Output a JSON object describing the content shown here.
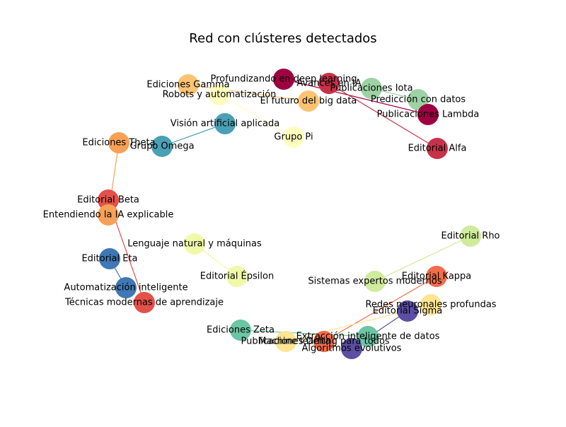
{
  "title": "Red con clústeres detectados",
  "nodes": [
    {
      "id": "n1",
      "label": "Profundizando en deep learning",
      "color": "#9e0142"
    },
    {
      "id": "n2",
      "label": "Avances en IA",
      "color": "#c7324a"
    },
    {
      "id": "n3",
      "label": "Publicaciones Iota",
      "color": "#9dd3a4"
    },
    {
      "id": "n4",
      "label": "Predicción con datos",
      "color": "#9dd3a4"
    },
    {
      "id": "n5",
      "label": "Publicaciones Lambda",
      "color": "#9e0142"
    },
    {
      "id": "n6",
      "label": "Editorial Alfa",
      "color": "#c7324a"
    },
    {
      "id": "n7",
      "label": "Ediciones Gamma",
      "color": "#fdc373"
    },
    {
      "id": "n8",
      "label": "Robots y automatización",
      "color": "#fefebe"
    },
    {
      "id": "n9",
      "label": "El futuro del big data",
      "color": "#fdc373"
    },
    {
      "id": "n10",
      "label": "Visión artificial aplicada",
      "color": "#4aa0b5"
    },
    {
      "id": "n11",
      "label": "Grupo Pi",
      "color": "#fefebe"
    },
    {
      "id": "n12",
      "label": "Ediciones Theta",
      "color": "#f7a158"
    },
    {
      "id": "n13",
      "label": "Grupo Omega",
      "color": "#4aa0b5"
    },
    {
      "id": "n14",
      "label": "Editorial Beta",
      "color": "#e2514a"
    },
    {
      "id": "n15",
      "label": "Entendiendo la IA explicable",
      "color": "#f7a158"
    },
    {
      "id": "n16",
      "label": "Editorial Rho",
      "color": "#cfeb9c"
    },
    {
      "id": "n17",
      "label": "Lenguaje natural y máquinas",
      "color": "#f0f9a8"
    },
    {
      "id": "n18",
      "label": "Editorial Eta",
      "color": "#3f78b4"
    },
    {
      "id": "n19",
      "label": "Editorial Épsilon",
      "color": "#f0f9a8"
    },
    {
      "id": "n20",
      "label": "Sistemas expertos modernos",
      "color": "#cfeb9c"
    },
    {
      "id": "n21",
      "label": "Editorial Kappa",
      "color": "#f26d4a"
    },
    {
      "id": "n22",
      "label": "Automatización inteligente",
      "color": "#3f78b4"
    },
    {
      "id": "n23",
      "label": "Técnicas modernas de aprendizaje",
      "color": "#e2514a"
    },
    {
      "id": "n24",
      "label": "Redes neuronales profundas",
      "color": "#fee593"
    },
    {
      "id": "n25",
      "label": "Editorial Sigma",
      "color": "#5c4ea3"
    },
    {
      "id": "n26",
      "label": "Ediciones Zeta",
      "color": "#6cc5a4"
    },
    {
      "id": "n27",
      "label": "Extracción inteligente de datos",
      "color": "#6cc5a4"
    },
    {
      "id": "n28",
      "label": "Publicaciones Delta",
      "color": "#fee593"
    },
    {
      "id": "n29",
      "label": "Machine learning para todos",
      "color": "#f26d4a"
    },
    {
      "id": "n30",
      "label": "Algoritmos evolutivos",
      "color": "#5c4ea3"
    }
  ],
  "edges": [
    {
      "source": "n1",
      "target": "n5",
      "color": "#9e0142"
    },
    {
      "source": "n2",
      "target": "n6",
      "color": "#c7324a"
    },
    {
      "source": "n3",
      "target": "n4",
      "color": "#9dd3a4"
    },
    {
      "source": "n7",
      "target": "n9",
      "color": "#fdc373"
    },
    {
      "source": "n8",
      "target": "n11",
      "color": "#fefebe"
    },
    {
      "source": "n10",
      "target": "n13",
      "color": "#4aa0b5"
    },
    {
      "source": "n12",
      "target": "n15",
      "color": "#f7a158"
    },
    {
      "source": "n14",
      "target": "n23",
      "color": "#e2514a"
    },
    {
      "source": "n16",
      "target": "n20",
      "color": "#cfeb9c"
    },
    {
      "source": "n17",
      "target": "n19",
      "color": "#f0f9a8"
    },
    {
      "source": "n18",
      "target": "n22",
      "color": "#3f78b4"
    },
    {
      "source": "n21",
      "target": "n29",
      "color": "#f26d4a"
    },
    {
      "source": "n24",
      "target": "n28",
      "color": "#fee593"
    },
    {
      "source": "n25",
      "target": "n30",
      "color": "#5c4ea3"
    },
    {
      "source": "n26",
      "target": "n27",
      "color": "#6cc5a4"
    }
  ]
}
